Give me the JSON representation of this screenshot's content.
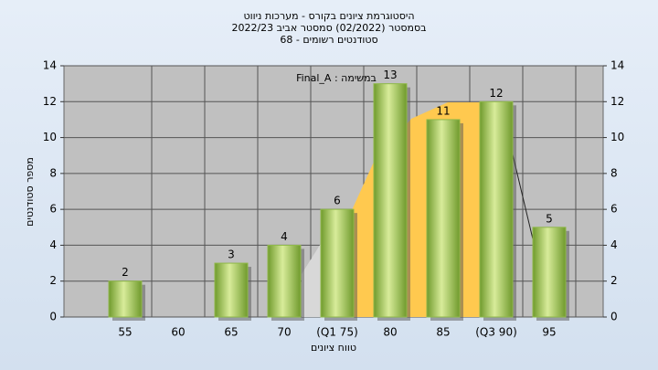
{
  "chart_data": {
    "type": "bar",
    "title": "היסטוגרמת ציונים בקורס - מערכות ניווט",
    "subtitle": "בסמסטר  (02/2022)  סמסטר אביב 2022/23",
    "subtitle2": "סטודנטים רשומים - 68",
    "annotation": "Final_A : במשימה",
    "x_label": "טווח ציונים",
    "y_label": "מספר סטודנטים",
    "categories": [
      "55",
      "60",
      "65",
      "70",
      "(Q1 75)",
      "80",
      "85",
      "(Q3 90)",
      "95"
    ],
    "values": [
      2,
      null,
      3,
      4,
      6,
      13,
      11,
      12,
      5
    ],
    "color": "#8fb84a",
    "ylim": [
      0,
      14
    ],
    "yticks": [
      0,
      2,
      4,
      6,
      8,
      10,
      12,
      14
    ],
    "grid": true
  }
}
